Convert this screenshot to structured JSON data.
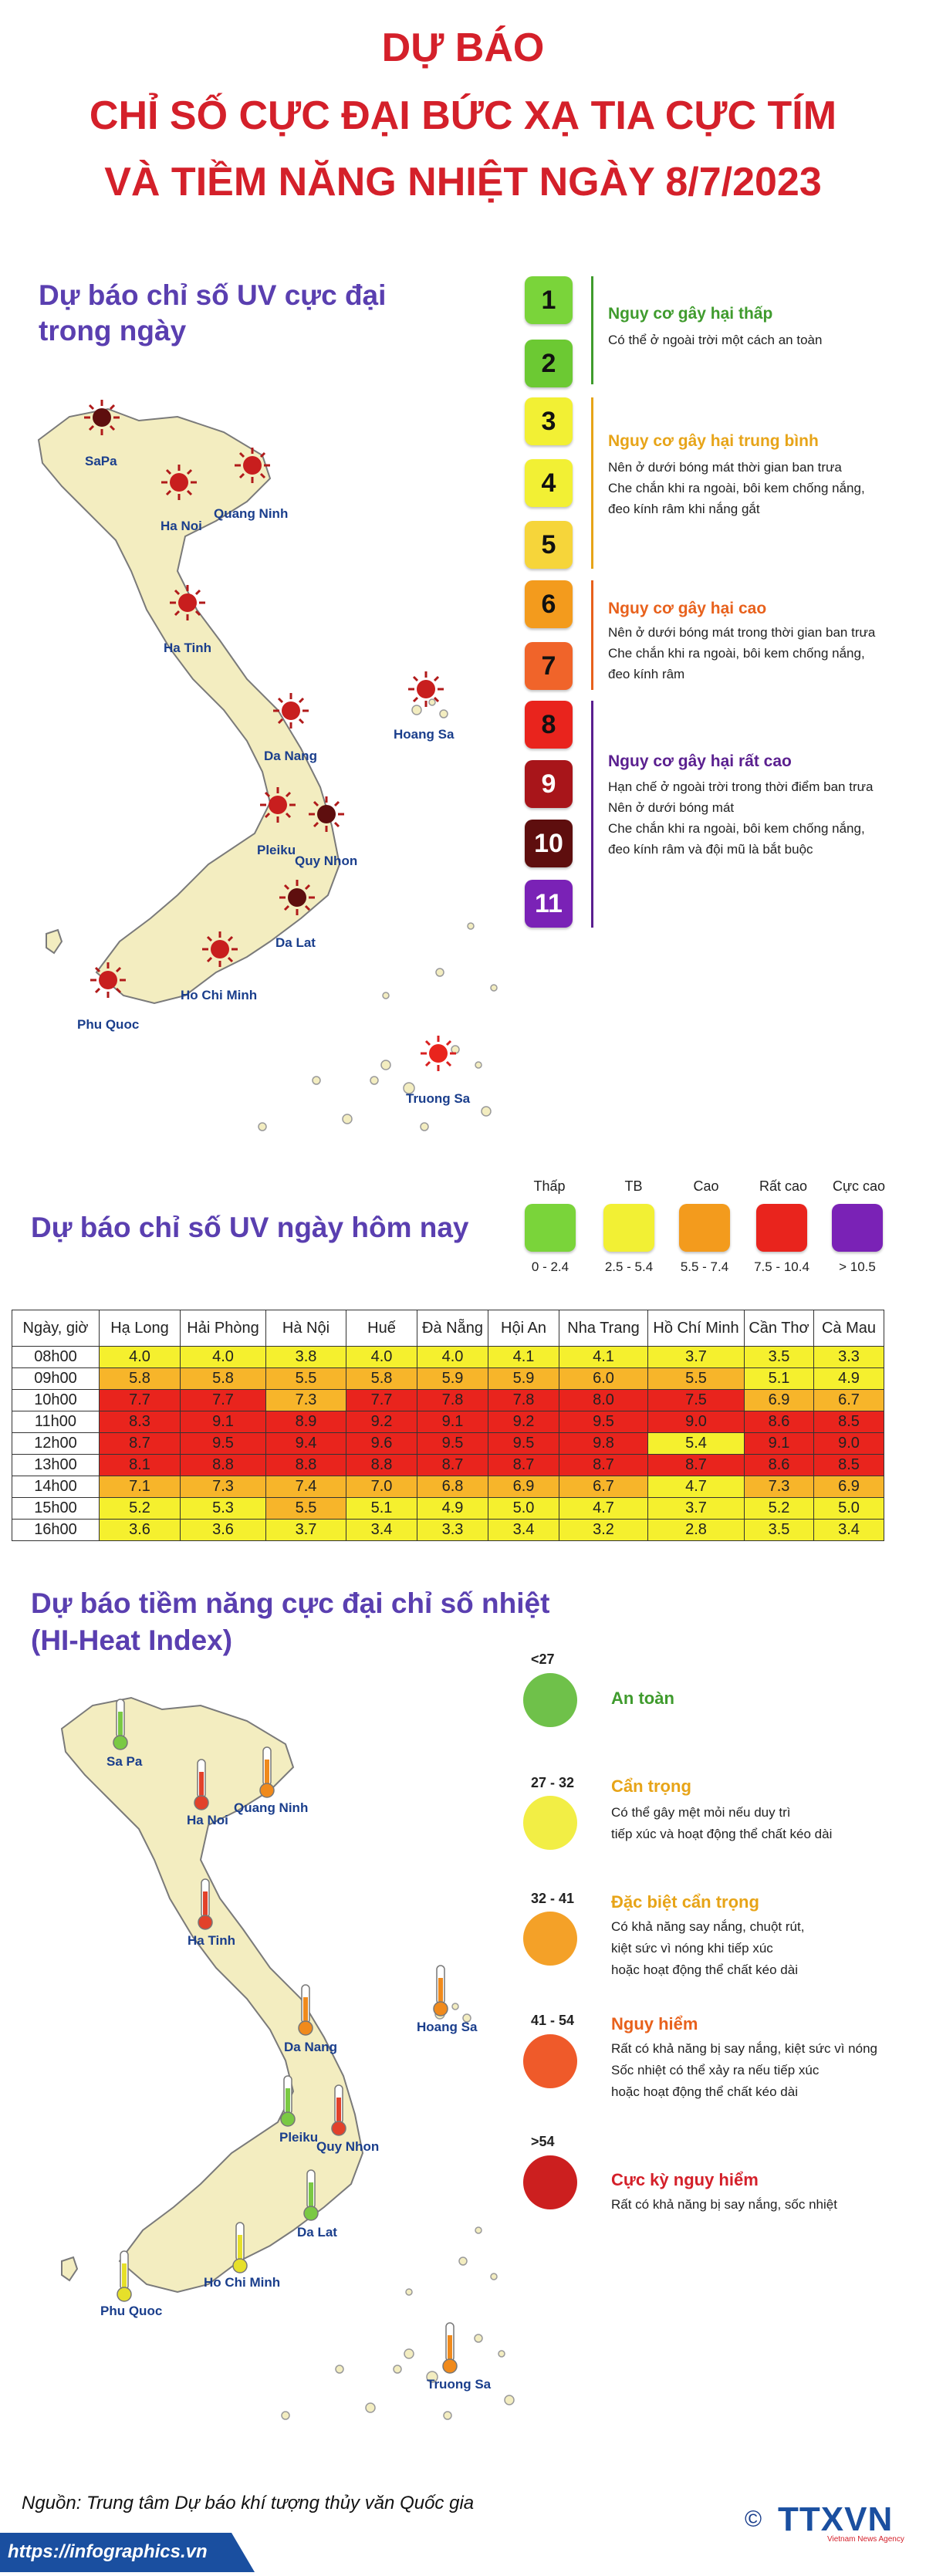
{
  "title": {
    "line1": "DỰ BÁO",
    "line2": "CHỈ SỐ CỰC ĐẠI BỨC XẠ TIA CỰC TÍM",
    "line3": "VÀ TIỀM NĂNG NHIỆT NGÀY 8/7/2023"
  },
  "uv_map": {
    "title_line1": "Dự báo chỉ số UV cực đại",
    "title_line2": "trong ngày",
    "cities": [
      "SaPa",
      "Ha Noi",
      "Quang Ninh",
      "Ha Tinh",
      "Hoang Sa",
      "Da Nang",
      "Pleiku",
      "Quy Nhon",
      "Da Lat",
      "Ho Chi Minh",
      "Phu Quoc",
      "Truong Sa"
    ]
  },
  "uv_scale": {
    "levels": [
      {
        "value": "1",
        "color": "#7ad43a"
      },
      {
        "value": "2",
        "color": "#6cc933"
      },
      {
        "value": "3",
        "color": "#f2f034"
      },
      {
        "value": "4",
        "color": "#f2f034"
      },
      {
        "value": "5",
        "color": "#f6d53a"
      },
      {
        "value": "6",
        "color": "#f39b1d"
      },
      {
        "value": "7",
        "color": "#f0642a"
      },
      {
        "value": "8",
        "color": "#e9241d"
      },
      {
        "value": "9",
        "color": "#a8151a"
      },
      {
        "value": "10",
        "color": "#5e0e0e"
      },
      {
        "value": "11",
        "color": "#7a22b6"
      }
    ],
    "groups": [
      {
        "title": "Nguy cơ gây hại thấp",
        "color": "#3f9b2d",
        "desc": [
          "Có thể ở ngoài trời một cách an toàn"
        ]
      },
      {
        "title": "Nguy cơ gây hại trung bình",
        "color": "#e7a418",
        "desc": [
          "Nên ở dưới bóng mát thời gian ban trưa",
          "Che chắn khi ra ngoài, bôi kem chống nắng,",
          "đeo kính râm khi nắng gắt"
        ]
      },
      {
        "title": "Nguy cơ gây hại cao",
        "color": "#e8611c",
        "desc": [
          "Nên ở dưới bóng mát trong thời gian ban trưa",
          "Che chắn khi ra ngoài, bôi kem chống nắng,",
          "đeo kính râm"
        ]
      },
      {
        "title": "Nguy cơ gây hại rất cao",
        "color": "#5a1f8f",
        "desc": [
          "Hạn chế ở ngoài trời trong thời điểm ban trưa",
          "Nên ở dưới bóng mát",
          "Che chắn khi ra ngoài, bôi kem chống nắng,",
          "đeo kính râm và đội mũ là bắt buộc"
        ]
      }
    ]
  },
  "uv_today": {
    "title": "Dự báo chỉ số UV ngày hôm nay",
    "legend": [
      {
        "label": "Thấp",
        "range": "0 - 2.4",
        "color": "#7ad43a"
      },
      {
        "label": "TB",
        "range": "2.5 - 5.4",
        "color": "#f2f034"
      },
      {
        "label": "Cao",
        "range": "5.5 - 7.4",
        "color": "#f39b1d"
      },
      {
        "label": "Rất cao",
        "range": "7.5 - 10.4",
        "color": "#e9241d"
      },
      {
        "label": "Cực cao",
        "range": "> 10.5",
        "color": "#7a22b6"
      }
    ]
  },
  "uv_table": {
    "headers": [
      "Ngày, giờ",
      "Hạ Long",
      "Hải Phòng",
      "Hà Nội",
      "Huế",
      "Đà Nẵng",
      "Hội An",
      "Nha Trang",
      "Hồ Chí Minh",
      "Cần Thơ",
      "Cà Mau"
    ],
    "rows": [
      [
        "08h00",
        "4.0",
        "4.0",
        "3.8",
        "4.0",
        "4.0",
        "4.1",
        "4.1",
        "3.7",
        "3.5",
        "3.3"
      ],
      [
        "09h00",
        "5.8",
        "5.8",
        "5.5",
        "5.8",
        "5.9",
        "5.9",
        "6.0",
        "5.5",
        "5.1",
        "4.9"
      ],
      [
        "10h00",
        "7.7",
        "7.7",
        "7.3",
        "7.7",
        "7.8",
        "7.8",
        "8.0",
        "7.5",
        "6.9",
        "6.7"
      ],
      [
        "11h00",
        "8.3",
        "9.1",
        "8.9",
        "9.2",
        "9.1",
        "9.2",
        "9.5",
        "9.0",
        "8.6",
        "8.5"
      ],
      [
        "12h00",
        "8.7",
        "9.5",
        "9.4",
        "9.6",
        "9.5",
        "9.5",
        "9.8",
        "5.4",
        "9.1",
        "9.0"
      ],
      [
        "13h00",
        "8.1",
        "8.8",
        "8.8",
        "8.8",
        "8.7",
        "8.7",
        "8.7",
        "8.7",
        "8.6",
        "8.5"
      ],
      [
        "14h00",
        "7.1",
        "7.3",
        "7.4",
        "7.0",
        "6.8",
        "6.9",
        "6.7",
        "4.7",
        "7.3",
        "6.9"
      ],
      [
        "15h00",
        "5.2",
        "5.3",
        "5.5",
        "5.1",
        "4.9",
        "5.0",
        "4.7",
        "3.7",
        "5.2",
        "5.0"
      ],
      [
        "16h00",
        "3.6",
        "3.6",
        "3.7",
        "3.4",
        "3.3",
        "3.4",
        "3.2",
        "2.8",
        "3.5",
        "3.4"
      ]
    ],
    "colors": {
      "tb": "#f5f02e",
      "cao": "#f7b52a",
      "ratcao": "#e9241d"
    }
  },
  "heat": {
    "title_line1": "Dự báo tiềm năng cực đại chỉ số nhiệt",
    "title_line2": "(HI-Heat Index)",
    "cities": [
      "Sa Pa",
      "Ha Noi",
      "Quang Ninh",
      "Ha Tinh",
      "Hoang Sa",
      "Da Nang",
      "Pleiku",
      "Quy Nhon",
      "Da Lat",
      "Ho Chi Minh",
      "Phu Quoc",
      "Truong Sa"
    ],
    "levels": [
      {
        "range": "<27",
        "title": "An toàn",
        "color": "#6fc14a",
        "title_color": "#3f9b2d",
        "desc": []
      },
      {
        "range": "27 - 32",
        "title": "Cẩn trọng",
        "color": "#f2ee45",
        "title_color": "#e7a418",
        "desc": [
          "Có thể gây mệt mỏi nếu duy trì",
          "tiếp xúc và hoạt động thể chất kéo dài"
        ]
      },
      {
        "range": "32 - 41",
        "title": "Đặc biệt cẩn trọng",
        "color": "#f4a128",
        "title_color": "#e7a418",
        "desc": [
          "Có khả năng say nắng, chuột rút,",
          "kiệt sức vì nóng khi tiếp xúc",
          "hoặc hoạt động thể chất kéo dài"
        ]
      },
      {
        "range": "41 - 54",
        "title": "Nguy hiểm",
        "color": "#ef5a2a",
        "title_color": "#e8611c",
        "desc": [
          "Rất có khả năng bị say nắng, kiệt sức vì nóng",
          "Sốc nhiệt có thể xảy ra nếu tiếp xúc",
          "hoặc hoạt động thể chất kéo dài"
        ]
      },
      {
        "range": ">54",
        "title": "Cực kỳ nguy hiểm",
        "color": "#cc1f1f",
        "title_color": "#d4202a",
        "desc": [
          "Rất có khả năng bị say nắng, sốc nhiệt"
        ]
      }
    ]
  },
  "footer": {
    "source": "Nguồn: Trung tâm Dự báo khí tượng thủy văn Quốc gia",
    "url": "https://infographics.vn",
    "copyright": "©",
    "logo": "TTXVN",
    "logo_sub": "Vietnam News Agency"
  }
}
